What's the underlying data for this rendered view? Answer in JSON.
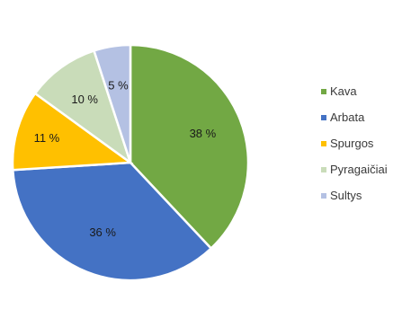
{
  "chart_data": {
    "type": "pie",
    "title": "",
    "categories": [
      "Kava",
      "Arbata",
      "Spurgos",
      "Pyragaičiai",
      "Sultys"
    ],
    "values": [
      38,
      36,
      11,
      10,
      5
    ],
    "labels": [
      "38 %",
      "36 %",
      "11 %",
      "10 %",
      "5 %"
    ],
    "colors": [
      "#72a844",
      "#4472c4",
      "#ffc000",
      "#c9dcb9",
      "#b4c1e3"
    ],
    "legend_position": "right"
  }
}
